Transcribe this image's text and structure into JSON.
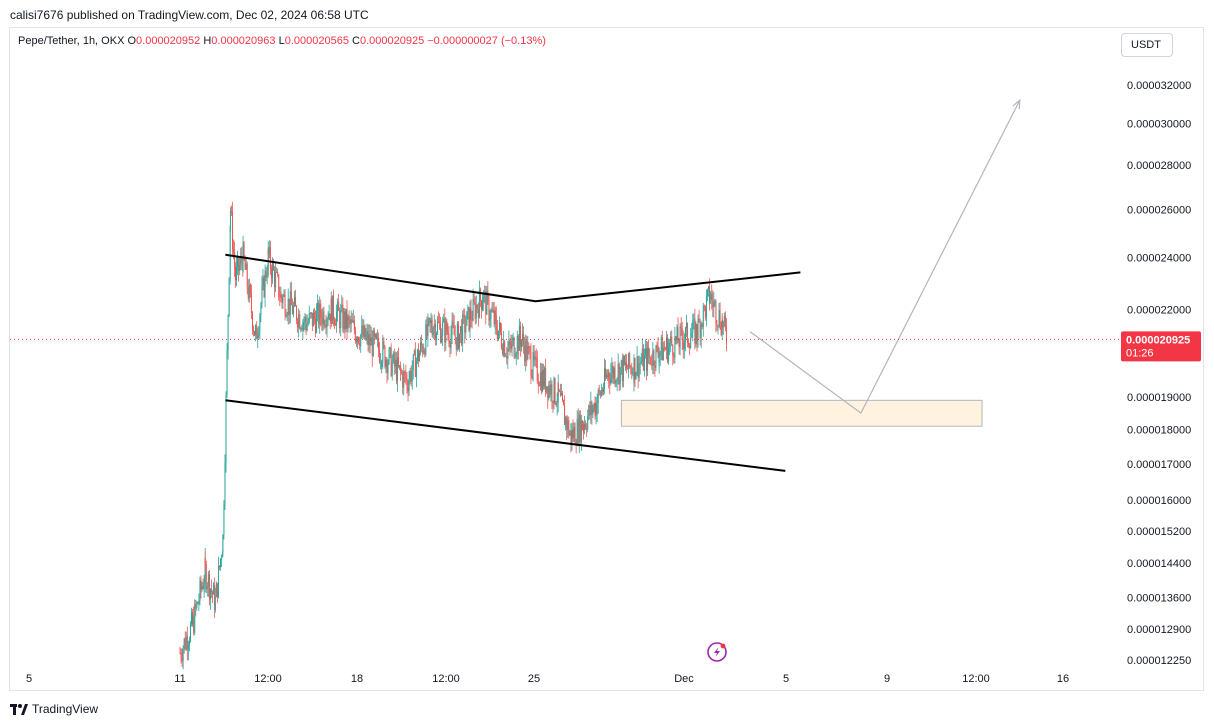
{
  "header": {
    "published": "calisi7676 published on TradingView.com, Dec 02, 2024 06:58 UTC"
  },
  "legend": {
    "symbol": "Pepe/Tether, 1h, OKX",
    "o_label": "O",
    "o_value": "0.000020952",
    "h_label": "H",
    "h_value": "0.000020963",
    "l_label": "L",
    "l_value": "0.000020565",
    "c_label": "C",
    "c_value": "0.000020925",
    "change": "−0.000000027 (−0.13%)"
  },
  "currency_button": "USDT",
  "footer": {
    "brand": "TradingView"
  },
  "colors": {
    "up": "#26a69a",
    "down": "#ef5350",
    "last_price": "#f23645",
    "zone_fill": "#fff3e0",
    "zone_border": "#b2b5be"
  },
  "chart_data": {
    "type": "candlestick",
    "y_scale": "log",
    "y_ticks": [
      "0.000032000",
      "0.000030000",
      "0.000028000",
      "0.000026000",
      "0.000024000",
      "0.000022000",
      "0.000019000",
      "0.000018000",
      "0.000017000",
      "0.000016000",
      "0.000015200",
      "0.000014400",
      "0.000013600",
      "0.000012900",
      "0.000012250"
    ],
    "x_ticks": [
      "5",
      "11",
      "12:00",
      "18",
      "12:00",
      "25",
      "Dec",
      "5",
      "9",
      "12:00",
      "16"
    ],
    "last_price": {
      "value": "0.000020925",
      "countdown": "01:26"
    },
    "price_path": [
      [
        11,
        1.24e-05
      ],
      [
        11.5,
        1.3e-05
      ],
      [
        12.0,
        1.42e-05
      ],
      [
        12.4,
        1.35e-05
      ],
      [
        12.7,
        1.5e-05
      ],
      [
        13.0,
        2.6e-05
      ],
      [
        13.2,
        2.32e-05
      ],
      [
        13.5,
        2.4e-05
      ],
      [
        14.0,
        2.1e-05
      ],
      [
        14.5,
        2.4e-05
      ],
      [
        15.0,
        2.25e-05
      ],
      [
        16.0,
        2.15e-05
      ],
      [
        17.0,
        2.2e-05
      ],
      [
        18.0,
        2.12e-05
      ],
      [
        19.0,
        2.05e-05
      ],
      [
        20.0,
        1.95e-05
      ],
      [
        21.0,
        2.15e-05
      ],
      [
        22.0,
        2.1e-05
      ],
      [
        23.0,
        2.25e-05
      ],
      [
        23.5,
        2.15e-05
      ],
      [
        24.0,
        2.05e-05
      ],
      [
        24.5,
        2.1e-05
      ],
      [
        25.0,
        2e-05
      ],
      [
        26.0,
        1.9e-05
      ],
      [
        26.5,
        1.78e-05
      ],
      [
        27.0,
        1.82e-05
      ],
      [
        27.5,
        1.88e-05
      ],
      [
        28.0,
        1.98e-05
      ],
      [
        29.0,
        2e-05
      ],
      [
        30.0,
        2.05e-05
      ],
      [
        31.0,
        2.1e-05
      ],
      [
        31.5,
        2.12e-05
      ],
      [
        32.0,
        2.25e-05
      ],
      [
        32.5,
        2.15e-05
      ],
      [
        32.7,
        2.09e-05
      ]
    ],
    "drawings": {
      "upper_trendline": [
        [
          12.8,
          2.41e-05
        ],
        [
          25.1,
          2.23e-05
        ],
        [
          35.6,
          2.34e-05
        ]
      ],
      "lower_trendline": [
        [
          12.8,
          1.89e-05
        ],
        [
          35.0,
          1.68e-05
        ]
      ],
      "demand_zone": {
        "x_from": 28.5,
        "x_to": 42.8,
        "y_top": 1.89e-05,
        "y_bottom": 1.81e-05
      },
      "projection": [
        [
          33.6,
          2.12e-05
        ],
        [
          38.0,
          1.85e-05
        ],
        [
          44.3,
          3.12e-05
        ]
      ]
    }
  }
}
